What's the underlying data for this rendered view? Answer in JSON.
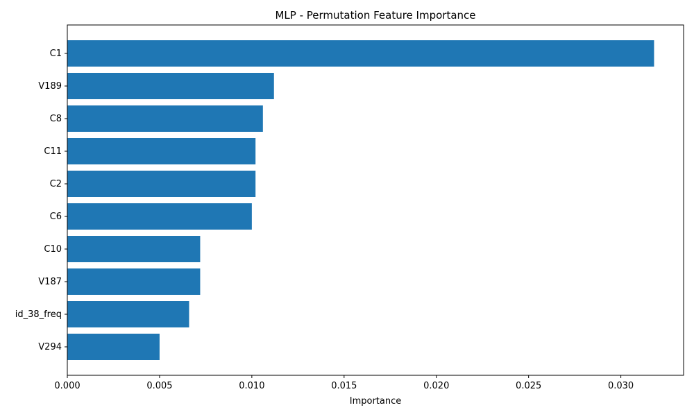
{
  "chart_data": {
    "type": "bar",
    "orientation": "horizontal",
    "title": "MLP - Permutation Feature Importance",
    "xlabel": "Importance",
    "ylabel": "",
    "categories": [
      "C1",
      "V189",
      "C8",
      "C11",
      "C2",
      "C6",
      "C10",
      "V187",
      "id_38_freq",
      "V294"
    ],
    "values": [
      0.0318,
      0.0112,
      0.0106,
      0.0102,
      0.0102,
      0.01,
      0.0072,
      0.0072,
      0.0066,
      0.005
    ],
    "xlim": [
      0,
      0.0334
    ],
    "xticks": [
      0.0,
      0.005,
      0.01,
      0.015,
      0.02,
      0.025,
      0.03
    ],
    "xtick_labels": [
      "0.000",
      "0.005",
      "0.010",
      "0.015",
      "0.020",
      "0.025",
      "0.030"
    ],
    "grid": false,
    "legend": "none",
    "bar_color": "#1f77b4"
  }
}
